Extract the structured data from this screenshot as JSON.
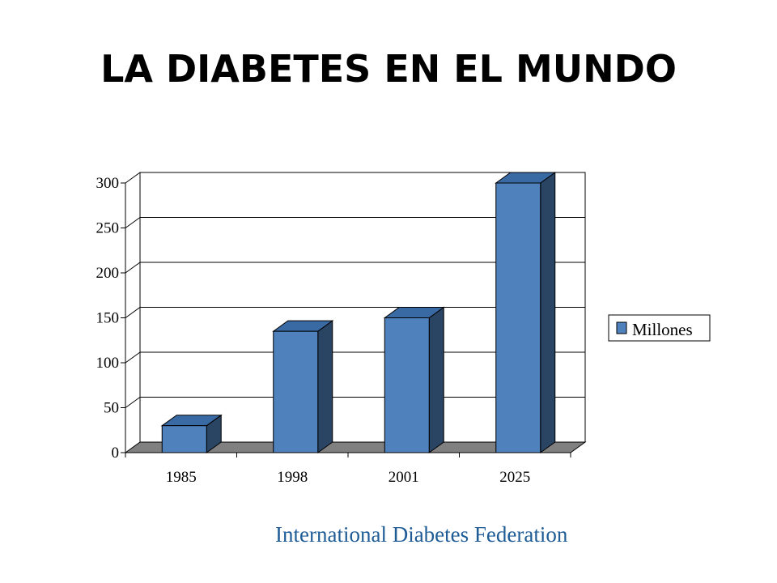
{
  "title": "LA DIABETES EN EL MUNDO",
  "source": "International Diabetes Federation",
  "colors": {
    "bar_front": "#4f81bd",
    "bar_top": "#3a6aa3",
    "bar_side": "#2a4464",
    "floor": "#808080",
    "source_text": "#1f5c96"
  },
  "chart_data": {
    "type": "bar",
    "categories": [
      "1985",
      "1998",
      "2001",
      "2025"
    ],
    "series": [
      {
        "name": "Millones",
        "values": [
          30,
          135,
          150,
          300
        ]
      }
    ],
    "xlabel": "",
    "ylabel": "",
    "ylim": [
      0,
      300
    ],
    "yticks": [
      "0",
      "50",
      "100",
      "150",
      "200",
      "250",
      "300"
    ],
    "grid": true,
    "legend": "right",
    "style": "3d"
  }
}
